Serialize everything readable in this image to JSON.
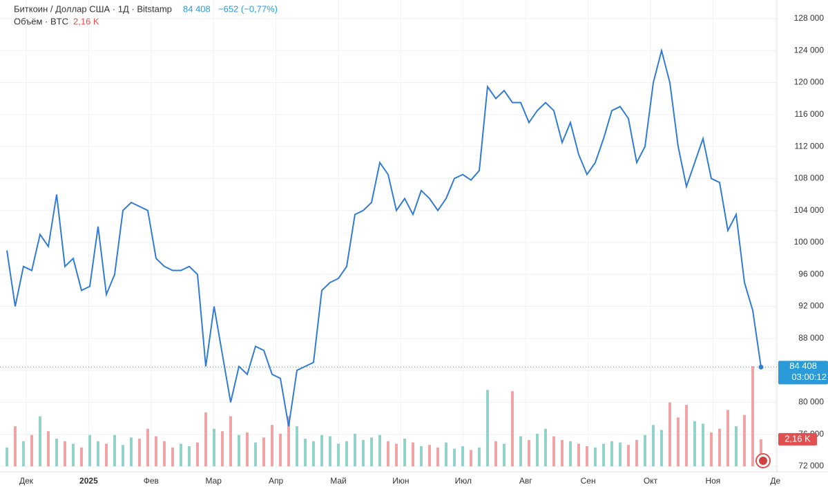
{
  "chart_data": {
    "type": "line",
    "title": "Биткоин / Доллар США · 1Д · Bitstamp",
    "last_label": "84 408",
    "change_label": "−652 (−0,77%)",
    "timer": "03:00:12",
    "volume_title": "Объём · BTC",
    "volume_last_label": "2,16 K",
    "color": "#2f7bd6",
    "volume_up_color": "#92d3cc",
    "volume_down_color": "#f2a3a3",
    "grid": true,
    "ylim": [
      72000,
      128000
    ],
    "yticks": [
      {
        "value": 72000,
        "label": "72 000"
      },
      {
        "value": 76000,
        "label": "76 000"
      },
      {
        "value": 80000,
        "label": "80 000"
      },
      {
        "value": 84000,
        "label": "84 000"
      },
      {
        "value": 88000,
        "label": "88 000"
      },
      {
        "value": 92000,
        "label": "92 000"
      },
      {
        "value": 96000,
        "label": "96 000"
      },
      {
        "value": 100000,
        "label": "100 000"
      },
      {
        "value": 104000,
        "label": "104 000"
      },
      {
        "value": 108000,
        "label": "108 000"
      },
      {
        "value": 112000,
        "label": "112 000"
      },
      {
        "value": 116000,
        "label": "116 000"
      },
      {
        "value": 120000,
        "label": "120 000"
      },
      {
        "value": 124000,
        "label": "124 000"
      },
      {
        "value": 128000,
        "label": "128 000"
      }
    ],
    "xlabels": [
      "Дек",
      "2025",
      "Фев",
      "Мар",
      "Апр",
      "Май",
      "Июн",
      "Июл",
      "Авг",
      "Сен",
      "Окт",
      "Ноя",
      "Де"
    ],
    "values": [
      99000,
      92000,
      97000,
      96500,
      101000,
      99500,
      106000,
      97000,
      98000,
      94000,
      94500,
      102000,
      93500,
      96000,
      104000,
      105000,
      104500,
      104000,
      98000,
      97000,
      96500,
      96500,
      97000,
      96000,
      84500,
      92000,
      86000,
      80000,
      84500,
      83500,
      87000,
      86500,
      83500,
      83000,
      77000,
      84000,
      84500,
      85000,
      94000,
      95000,
      95500,
      97000,
      103500,
      104000,
      105000,
      110000,
      108500,
      104000,
      105500,
      103500,
      106500,
      105500,
      104000,
      105500,
      108000,
      108500,
      107800,
      109000,
      119500,
      118000,
      119000,
      117500,
      117500,
      115000,
      116500,
      117500,
      116500,
      112500,
      115000,
      111000,
      108500,
      110000,
      113000,
      116500,
      117000,
      115500,
      110000,
      112000,
      120000,
      124000,
      120000,
      112000,
      107000,
      110000,
      113000,
      108000,
      107500,
      101500,
      103500,
      95000,
      91500,
      84408
    ],
    "volume_lim": [
      0,
      8
    ],
    "volumes": [
      1.5,
      3.2,
      2.0,
      2.5,
      4.0,
      2.8,
      2.2,
      2.0,
      1.8,
      1.5,
      2.5,
      2.0,
      1.8,
      2.5,
      1.7,
      2.3,
      2.2,
      3.0,
      2.4,
      2.0,
      1.5,
      1.8,
      1.6,
      1.9,
      4.3,
      3.0,
      2.8,
      4.0,
      2.5,
      2.7,
      1.9,
      2.3,
      3.3,
      2.6,
      4.0,
      3.2,
      2.2,
      2.0,
      2.5,
      2.4,
      1.8,
      2.0,
      2.6,
      2.1,
      2.3,
      2.5,
      2.0,
      1.8,
      2.2,
      1.9,
      1.6,
      1.7,
      1.5,
      1.9,
      1.4,
      1.6,
      1.3,
      1.5,
      6.1,
      2.0,
      1.8,
      6.0,
      2.4,
      2.1,
      2.6,
      3.0,
      2.4,
      2.1,
      2.0,
      1.8,
      1.6,
      1.5,
      1.8,
      2.0,
      1.9,
      1.7,
      2.1,
      2.5,
      3.3,
      2.9,
      5.1,
      3.9,
      4.9,
      3.6,
      3.4,
      2.7,
      3.0,
      4.5,
      3.2,
      4.1,
      8.0,
      2.16
    ]
  }
}
